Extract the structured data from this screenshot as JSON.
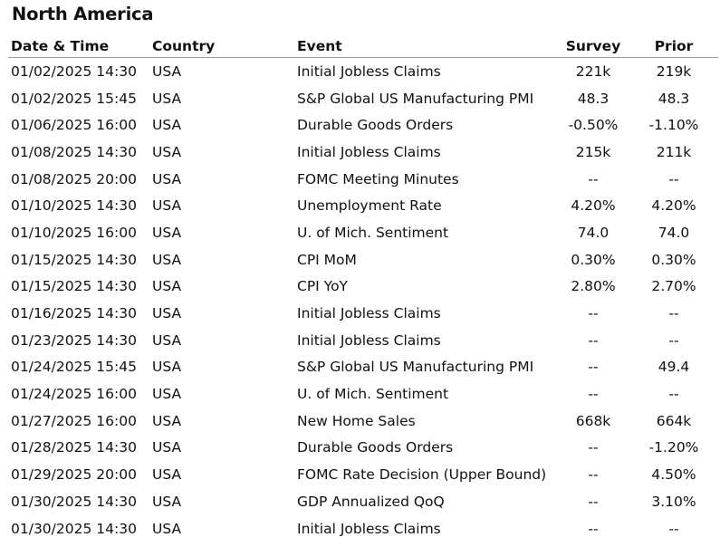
{
  "title": "North America",
  "columns": {
    "date_time": "Date & Time",
    "country": "Country",
    "event": "Event",
    "survey": "Survey",
    "prior": "Prior"
  },
  "rows": [
    {
      "date_time": "01/02/2025 14:30",
      "country": "USA",
      "event": "Initial Jobless Claims",
      "survey": "221k",
      "prior": "219k"
    },
    {
      "date_time": "01/02/2025 15:45",
      "country": "USA",
      "event": "S&P Global US Manufacturing PMI",
      "survey": "48.3",
      "prior": "48.3"
    },
    {
      "date_time": "01/06/2025 16:00",
      "country": "USA",
      "event": "Durable Goods Orders",
      "survey": "-0.50%",
      "prior": "-1.10%"
    },
    {
      "date_time": "01/08/2025 14:30",
      "country": "USA",
      "event": "Initial Jobless Claims",
      "survey": "215k",
      "prior": "211k"
    },
    {
      "date_time": "01/08/2025 20:00",
      "country": "USA",
      "event": "FOMC Meeting Minutes",
      "survey": "--",
      "prior": "--"
    },
    {
      "date_time": "01/10/2025 14:30",
      "country": "USA",
      "event": "Unemployment Rate",
      "survey": "4.20%",
      "prior": "4.20%"
    },
    {
      "date_time": "01/10/2025 16:00",
      "country": "USA",
      "event": "U. of Mich. Sentiment",
      "survey": "74.0",
      "prior": "74.0"
    },
    {
      "date_time": "01/15/2025 14:30",
      "country": "USA",
      "event": "CPI MoM",
      "survey": "0.30%",
      "prior": "0.30%"
    },
    {
      "date_time": "01/15/2025 14:30",
      "country": "USA",
      "event": "CPI YoY",
      "survey": "2.80%",
      "prior": "2.70%"
    },
    {
      "date_time": "01/16/2025 14:30",
      "country": "USA",
      "event": "Initial Jobless Claims",
      "survey": "--",
      "prior": "--"
    },
    {
      "date_time": "01/23/2025 14:30",
      "country": "USA",
      "event": "Initial Jobless Claims",
      "survey": "--",
      "prior": "--"
    },
    {
      "date_time": "01/24/2025 15:45",
      "country": "USA",
      "event": "S&P Global US Manufacturing PMI",
      "survey": "--",
      "prior": "49.4"
    },
    {
      "date_time": "01/24/2025 16:00",
      "country": "USA",
      "event": "U. of Mich. Sentiment",
      "survey": "--",
      "prior": "--"
    },
    {
      "date_time": "01/27/2025 16:00",
      "country": "USA",
      "event": "New Home Sales",
      "survey": "668k",
      "prior": "664k"
    },
    {
      "date_time": "01/28/2025 14:30",
      "country": "USA",
      "event": "Durable Goods Orders",
      "survey": "--",
      "prior": "-1.20%"
    },
    {
      "date_time": "01/29/2025 20:00",
      "country": "USA",
      "event": "FOMC Rate Decision (Upper Bound)",
      "survey": "--",
      "prior": "4.50%"
    },
    {
      "date_time": "01/30/2025 14:30",
      "country": "USA",
      "event": "GDP Annualized QoQ",
      "survey": "--",
      "prior": "3.10%"
    },
    {
      "date_time": "01/30/2025 14:30",
      "country": "USA",
      "event": "Initial Jobless Claims",
      "survey": "--",
      "prior": "--"
    }
  ]
}
